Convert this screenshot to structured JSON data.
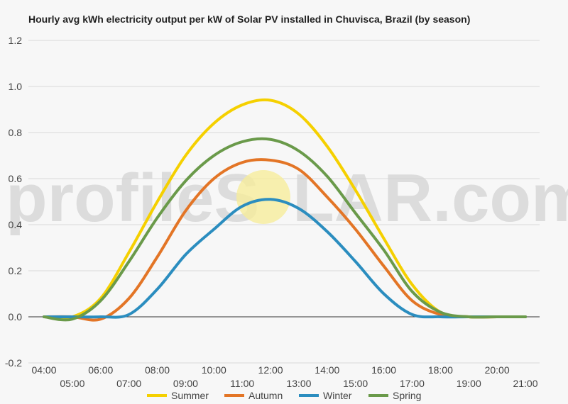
{
  "chart_data": {
    "type": "line",
    "title": "Hourly avg kWh electricity output per kW of Solar PV installed in Chuvisca, Brazil (by season)",
    "xlabel": "",
    "ylabel": "",
    "x": [
      "04:00",
      "05:00",
      "06:00",
      "07:00",
      "08:00",
      "09:00",
      "10:00",
      "11:00",
      "12:00",
      "13:00",
      "14:00",
      "15:00",
      "16:00",
      "17:00",
      "18:00",
      "19:00",
      "20:00",
      "21:00"
    ],
    "ylim": [
      -0.2,
      1.2
    ],
    "yticks": [
      "-0.2",
      "0.0",
      "0.2",
      "0.4",
      "0.6",
      "0.8",
      "1.0",
      "1.2"
    ],
    "grid": true,
    "legend": "bottom",
    "series": [
      {
        "name": "Summer",
        "color": "#f5d000",
        "values": [
          0.0,
          0.0,
          0.08,
          0.28,
          0.5,
          0.7,
          0.84,
          0.92,
          0.94,
          0.88,
          0.74,
          0.55,
          0.34,
          0.14,
          0.02,
          0.0,
          0.0,
          0.0
        ]
      },
      {
        "name": "Autumn",
        "color": "#e37526",
        "values": [
          0.0,
          0.0,
          -0.01,
          0.08,
          0.26,
          0.46,
          0.6,
          0.67,
          0.68,
          0.64,
          0.52,
          0.38,
          0.22,
          0.07,
          0.01,
          0.0,
          0.0,
          0.0
        ]
      },
      {
        "name": "Winter",
        "color": "#2b8dbf",
        "values": [
          0.0,
          0.0,
          0.0,
          0.01,
          0.12,
          0.27,
          0.38,
          0.48,
          0.51,
          0.47,
          0.37,
          0.24,
          0.1,
          0.01,
          0.0,
          0.0,
          0.0,
          0.0
        ]
      },
      {
        "name": "Spring",
        "color": "#6a9a4a",
        "values": [
          0.0,
          -0.01,
          0.07,
          0.24,
          0.43,
          0.59,
          0.7,
          0.76,
          0.77,
          0.72,
          0.61,
          0.45,
          0.29,
          0.11,
          0.02,
          0.0,
          0.0,
          0.0
        ]
      }
    ]
  },
  "watermark": {
    "left": "profileS",
    "right": "LAR.com"
  }
}
